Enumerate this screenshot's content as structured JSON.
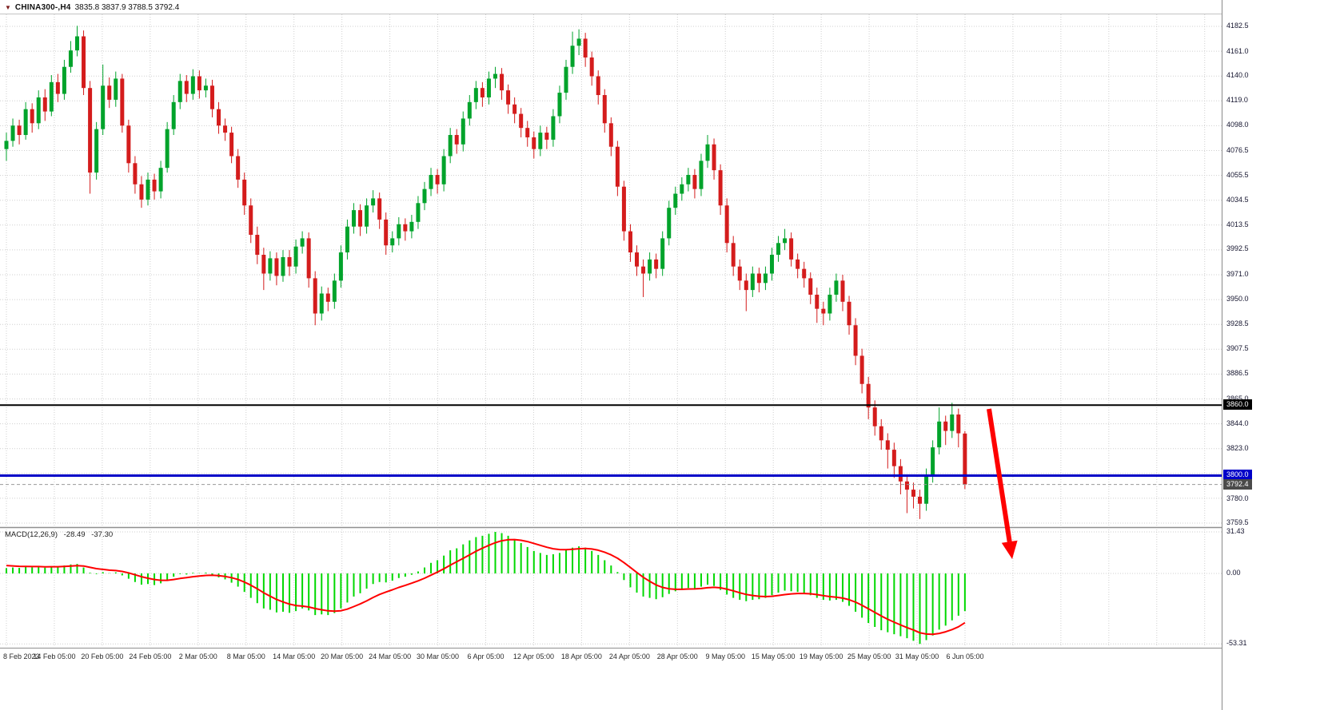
{
  "window": {
    "title_icon": "▼",
    "symbol": "CHINA300-,H4",
    "ohlc_text": "3835.8 3837.9 3788.5 3792.4"
  },
  "price_axis": {
    "badges": [
      {
        "label": "3860.0",
        "value": 3860.0,
        "bg": "#000000",
        "fg": "#ffffff"
      },
      {
        "label": "3800.0",
        "value": 3800.0,
        "bg": "#0000c8",
        "fg": "#ffffff"
      },
      {
        "label": "3792.4",
        "value": 3792.4,
        "bg": "#4a4a4a",
        "fg": "#ffffff"
      }
    ]
  },
  "macd_panel": {
    "name": "MACD(12,26,9)",
    "main_value": "-28.49",
    "signal_value": "-37.30",
    "scale": {
      "max": "31.43",
      "zero": "0.00",
      "min": "-53.31"
    }
  },
  "colors": {
    "candle_up": "#00a32b",
    "candle_down": "#d41c1c",
    "macd_bar": "#00d800",
    "signal_line": "#ff0000",
    "grid": "#cfcfcf",
    "separator": "#909090",
    "black_line": "#000000",
    "blue_line": "#0000c8",
    "current_price_line": "#9a9a9a",
    "arrow": "#fe0000",
    "axis_text": "#14142e"
  },
  "chart_data": {
    "type": "candlestick",
    "symbol": "CHINA300",
    "timeframe": "H4",
    "title": "CHINA300-,H4 3835.8 3837.9 3788.5 3792.4",
    "grid": true,
    "price_axis_range": [
      3759.5,
      4182.5
    ],
    "price_tick_labels": [
      "4182.5",
      "4161.0",
      "4140.0",
      "4119.0",
      "4098.0",
      "4076.5",
      "4055.5",
      "4034.5",
      "4013.5",
      "3992.5",
      "3971.0",
      "3950.0",
      "3928.5",
      "3907.5",
      "3886.5",
      "3865.0",
      "3844.0",
      "3823.0",
      "3780.0",
      "3759.5"
    ],
    "x_tick_labels": [
      "8 Feb 2023",
      "14 Feb 05:00",
      "20 Feb 05:00",
      "24 Feb 05:00",
      "2 Mar 05:00",
      "8 Mar 05:00",
      "14 Mar 05:00",
      "20 Mar 05:00",
      "24 Mar 05:00",
      "30 Mar 05:00",
      "6 Apr 05:00",
      "12 Apr 05:00",
      "18 Apr 05:00",
      "24 Apr 05:00",
      "28 Apr 05:00",
      "9 May 05:00",
      "15 May 05:00",
      "19 May 05:00",
      "25 May 05:00",
      "31 May 05:00",
      "6 Jun 05:00"
    ],
    "hlines": [
      {
        "value": 3860.0,
        "color": "#000000",
        "width": 2
      },
      {
        "value": 3800.0,
        "color": "#0000c8",
        "width": 3
      }
    ],
    "current_price": 3792.4,
    "last_bar_ohlc": [
      3835.8,
      3837.9,
      3788.5,
      3792.4
    ],
    "annotations": [
      {
        "type": "arrow",
        "color": "#fe0000",
        "direction": "down",
        "start_price": 3858,
        "end_price": 3728,
        "note": "projected-decline-arrow"
      }
    ],
    "candles": [
      [
        4078,
        4092,
        4068,
        4085
      ],
      [
        4085,
        4104,
        4080,
        4098
      ],
      [
        4098,
        4103,
        4082,
        4090
      ],
      [
        4090,
        4118,
        4086,
        4112
      ],
      [
        4112,
        4117,
        4092,
        4100
      ],
      [
        4100,
        4128,
        4095,
        4122
      ],
      [
        4122,
        4129,
        4102,
        4110
      ],
      [
        4110,
        4141,
        4106,
        4135
      ],
      [
        4135,
        4142,
        4118,
        4125
      ],
      [
        4125,
        4154,
        4120,
        4148
      ],
      [
        4148,
        4170,
        4143,
        4162
      ],
      [
        4162,
        4183,
        4157,
        4174
      ],
      [
        4174,
        4179,
        4124,
        4130
      ],
      [
        4130,
        4136,
        4040,
        4058
      ],
      [
        4058,
        4101,
        4052,
        4095
      ],
      [
        4095,
        4150,
        4090,
        4132
      ],
      [
        4132,
        4139,
        4113,
        4120
      ],
      [
        4120,
        4144,
        4114,
        4138
      ],
      [
        4138,
        4142,
        4092,
        4098
      ],
      [
        4098,
        4103,
        4058,
        4066
      ],
      [
        4066,
        4072,
        4040,
        4048
      ],
      [
        4048,
        4055,
        4028,
        4035
      ],
      [
        4035,
        4058,
        4030,
        4052
      ],
      [
        4052,
        4057,
        4035,
        4042
      ],
      [
        4042,
        4068,
        4036,
        4062
      ],
      [
        4062,
        4101,
        4058,
        4095
      ],
      [
        4095,
        4124,
        4090,
        4118
      ],
      [
        4118,
        4142,
        4112,
        4136
      ],
      [
        4136,
        4141,
        4118,
        4125
      ],
      [
        4125,
        4146,
        4120,
        4140
      ],
      [
        4140,
        4145,
        4121,
        4128
      ],
      [
        4128,
        4138,
        4122,
        4132
      ],
      [
        4132,
        4137,
        4105,
        4112
      ],
      [
        4112,
        4118,
        4091,
        4098
      ],
      [
        4098,
        4104,
        4085,
        4092
      ],
      [
        4092,
        4097,
        4066,
        4072
      ],
      [
        4072,
        4078,
        4045,
        4052
      ],
      [
        4052,
        4058,
        4022,
        4030
      ],
      [
        4030,
        4036,
        3998,
        4005
      ],
      [
        4005,
        4012,
        3980,
        3988
      ],
      [
        3988,
        3994,
        3958,
        3972
      ],
      [
        3972,
        3991,
        3966,
        3985
      ],
      [
        3985,
        3990,
        3962,
        3970
      ],
      [
        3970,
        3992,
        3965,
        3986
      ],
      [
        3986,
        3992,
        3970,
        3978
      ],
      [
        3978,
        4001,
        3972,
        3995
      ],
      [
        3995,
        4008,
        3989,
        4002
      ],
      [
        4002,
        4007,
        3960,
        3968
      ],
      [
        3968,
        3974,
        3928,
        3938
      ],
      [
        3938,
        3961,
        3932,
        3955
      ],
      [
        3955,
        3960,
        3940,
        3948
      ],
      [
        3948,
        3972,
        3942,
        3966
      ],
      [
        3966,
        3996,
        3960,
        3990
      ],
      [
        3990,
        4018,
        3984,
        4012
      ],
      [
        4012,
        4032,
        4006,
        4026
      ],
      [
        4026,
        4031,
        4004,
        4012
      ],
      [
        4012,
        4036,
        4006,
        4030
      ],
      [
        4030,
        4043,
        4024,
        4036
      ],
      [
        4036,
        4041,
        4010,
        4018
      ],
      [
        4018,
        4024,
        3988,
        3996
      ],
      [
        3996,
        4008,
        3990,
        4002
      ],
      [
        4002,
        4020,
        3996,
        4014
      ],
      [
        4014,
        4019,
        4000,
        4008
      ],
      [
        4008,
        4022,
        4002,
        4016
      ],
      [
        4016,
        4038,
        4010,
        4032
      ],
      [
        4032,
        4050,
        4026,
        4044
      ],
      [
        4044,
        4062,
        4038,
        4056
      ],
      [
        4056,
        4061,
        4040,
        4048
      ],
      [
        4048,
        4078,
        4042,
        4072
      ],
      [
        4072,
        4096,
        4066,
        4090
      ],
      [
        4090,
        4095,
        4074,
        4082
      ],
      [
        4082,
        4110,
        4076,
        4104
      ],
      [
        4104,
        4124,
        4098,
        4118
      ],
      [
        4118,
        4136,
        4112,
        4130
      ],
      [
        4130,
        4135,
        4114,
        4122
      ],
      [
        4122,
        4144,
        4116,
        4138
      ],
      [
        4138,
        4148,
        4130,
        4142
      ],
      [
        4142,
        4147,
        4120,
        4128
      ],
      [
        4128,
        4133,
        4108,
        4116
      ],
      [
        4116,
        4122,
        4100,
        4108
      ],
      [
        4108,
        4113,
        4088,
        4096
      ],
      [
        4096,
        4102,
        4080,
        4088
      ],
      [
        4088,
        4093,
        4070,
        4078
      ],
      [
        4078,
        4098,
        4072,
        4092
      ],
      [
        4092,
        4097,
        4078,
        4086
      ],
      [
        4086,
        4112,
        4080,
        4106
      ],
      [
        4106,
        4132,
        4100,
        4126
      ],
      [
        4126,
        4154,
        4120,
        4148
      ],
      [
        4148,
        4178,
        4142,
        4166
      ],
      [
        4166,
        4180,
        4158,
        4172
      ],
      [
        4172,
        4177,
        4148,
        4156
      ],
      [
        4156,
        4161,
        4132,
        4140
      ],
      [
        4140,
        4145,
        4116,
        4124
      ],
      [
        4124,
        4129,
        4092,
        4100
      ],
      [
        4100,
        4105,
        4072,
        4080
      ],
      [
        4080,
        4085,
        4038,
        4046
      ],
      [
        4046,
        4051,
        4000,
        4008
      ],
      [
        4008,
        4014,
        3982,
        3990
      ],
      [
        3990,
        3996,
        3970,
        3978
      ],
      [
        3978,
        3984,
        3952,
        3972
      ],
      [
        3972,
        3990,
        3966,
        3984
      ],
      [
        3984,
        3989,
        3968,
        3976
      ],
      [
        3976,
        4008,
        3970,
        4002
      ],
      [
        4002,
        4034,
        3996,
        4028
      ],
      [
        4028,
        4046,
        4022,
        4040
      ],
      [
        4040,
        4054,
        4034,
        4048
      ],
      [
        4048,
        4062,
        4042,
        4056
      ],
      [
        4056,
        4061,
        4036,
        4044
      ],
      [
        4044,
        4074,
        4038,
        4068
      ],
      [
        4068,
        4090,
        4062,
        4082
      ],
      [
        4082,
        4087,
        4052,
        4060
      ],
      [
        4060,
        4065,
        4022,
        4030
      ],
      [
        4030,
        4036,
        3990,
        3998
      ],
      [
        3998,
        4004,
        3970,
        3978
      ],
      [
        3978,
        3984,
        3958,
        3966
      ],
      [
        3966,
        3972,
        3940,
        3958
      ],
      [
        3958,
        3978,
        3952,
        3972
      ],
      [
        3972,
        3977,
        3956,
        3964
      ],
      [
        3964,
        3978,
        3958,
        3972
      ],
      [
        3972,
        3994,
        3966,
        3988
      ],
      [
        3988,
        4004,
        3982,
        3998
      ],
      [
        3998,
        4010,
        3992,
        4002
      ],
      [
        4002,
        4007,
        3978,
        3984
      ],
      [
        3984,
        3989,
        3968,
        3976
      ],
      [
        3976,
        3982,
        3960,
        3968
      ],
      [
        3968,
        3973,
        3946,
        3954
      ],
      [
        3954,
        3960,
        3930,
        3942
      ],
      [
        3942,
        3948,
        3928,
        3938
      ],
      [
        3938,
        3960,
        3932,
        3954
      ],
      [
        3954,
        3972,
        3948,
        3966
      ],
      [
        3966,
        3971,
        3940,
        3948
      ],
      [
        3948,
        3953,
        3920,
        3928
      ],
      [
        3928,
        3934,
        3894,
        3902
      ],
      [
        3902,
        3908,
        3870,
        3878
      ],
      [
        3878,
        3884,
        3848,
        3858
      ],
      [
        3858,
        3864,
        3834,
        3842
      ],
      [
        3842,
        3848,
        3822,
        3830
      ],
      [
        3830,
        3836,
        3806,
        3822
      ],
      [
        3822,
        3828,
        3798,
        3808
      ],
      [
        3808,
        3814,
        3784,
        3795
      ],
      [
        3795,
        3801,
        3768,
        3788
      ],
      [
        3788,
        3794,
        3772,
        3782
      ],
      [
        3782,
        3788,
        3763,
        3776
      ],
      [
        3776,
        3806,
        3770,
        3800
      ],
      [
        3800,
        3830,
        3794,
        3824
      ],
      [
        3824,
        3858,
        3818,
        3846
      ],
      [
        3846,
        3851,
        3826,
        3838
      ],
      [
        3838,
        3862,
        3832,
        3852
      ],
      [
        3852,
        3857,
        3824,
        3836
      ],
      [
        3835.8,
        3837.9,
        3788.5,
        3792.4
      ]
    ],
    "indicator": {
      "type": "MACD",
      "params": [
        12,
        26,
        9
      ],
      "range": [
        -53.31,
        31.43
      ],
      "histogram": [
        4.0,
        4.5,
        4.2,
        5.0,
        4.6,
        5.1,
        4.4,
        5.3,
        5.0,
        6.0,
        6.8,
        7.2,
        4.5,
        0.5,
        -0.5,
        1.0,
        0.2,
        0.8,
        -1.5,
        -4.0,
        -6.5,
        -8.5,
        -8.0,
        -8.8,
        -7.5,
        -5.0,
        -2.5,
        -0.5,
        -0.8,
        0.5,
        0.2,
        0.6,
        -1.0,
        -3.0,
        -4.5,
        -7.0,
        -10.0,
        -14.0,
        -18.5,
        -22.5,
        -26.5,
        -27.5,
        -29.5,
        -29.0,
        -29.8,
        -28.5,
        -26.5,
        -28.0,
        -31.5,
        -31.0,
        -31.5,
        -30.0,
        -26.5,
        -22.0,
        -17.5,
        -15.0,
        -11.5,
        -8.0,
        -6.5,
        -6.8,
        -5.5,
        -3.5,
        -2.5,
        -1.0,
        1.5,
        4.5,
        8.0,
        10.0,
        13.5,
        17.5,
        19.0,
        22.0,
        25.0,
        27.5,
        28.5,
        30.0,
        31.43,
        30.5,
        28.5,
        26.0,
        23.0,
        20.0,
        17.0,
        15.5,
        14.0,
        14.5,
        15.5,
        17.5,
        19.5,
        20.5,
        19.5,
        17.0,
        14.0,
        10.0,
        6.0,
        1.0,
        -5.0,
        -10.5,
        -14.5,
        -17.5,
        -18.5,
        -19.5,
        -18.0,
        -15.5,
        -13.5,
        -12.0,
        -11.0,
        -11.5,
        -10.0,
        -8.5,
        -9.5,
        -12.5,
        -16.0,
        -18.5,
        -20.0,
        -21.0,
        -20.0,
        -19.5,
        -18.5,
        -16.5,
        -14.5,
        -13.0,
        -13.5,
        -14.0,
        -15.0,
        -16.5,
        -18.5,
        -20.0,
        -20.5,
        -20.0,
        -21.5,
        -24.5,
        -29.0,
        -33.5,
        -37.5,
        -40.5,
        -43.0,
        -44.5,
        -46.0,
        -47.5,
        -49.0,
        -51.0,
        -53.31,
        -50.5,
        -47.0,
        -42.5,
        -39.5,
        -35.5,
        -32.0,
        -28.49
      ],
      "signal": [
        6.0,
        5.7,
        5.4,
        5.3,
        5.2,
        5.2,
        5.0,
        5.1,
        5.1,
        5.3,
        5.6,
        5.9,
        5.6,
        4.6,
        3.6,
        3.1,
        2.5,
        2.2,
        1.5,
        0.4,
        -1.0,
        -2.5,
        -3.6,
        -4.6,
        -5.2,
        -5.2,
        -4.6,
        -3.8,
        -3.2,
        -2.5,
        -2.0,
        -1.5,
        -1.4,
        -1.7,
        -2.3,
        -3.2,
        -4.6,
        -6.5,
        -8.9,
        -11.6,
        -14.6,
        -17.2,
        -19.7,
        -21.6,
        -23.2,
        -24.3,
        -24.7,
        -25.4,
        -26.6,
        -27.5,
        -28.3,
        -28.6,
        -28.2,
        -27.0,
        -25.1,
        -23.1,
        -20.8,
        -18.2,
        -15.9,
        -14.1,
        -12.4,
        -10.6,
        -9.0,
        -7.4,
        -5.6,
        -3.6,
        -1.3,
        1.0,
        3.5,
        6.3,
        8.8,
        11.4,
        14.1,
        16.8,
        19.1,
        21.3,
        23.3,
        24.7,
        25.5,
        25.6,
        25.1,
        24.1,
        22.7,
        21.3,
        19.8,
        18.7,
        18.1,
        18.0,
        18.3,
        18.7,
        18.9,
        18.5,
        17.6,
        16.1,
        14.1,
        11.5,
        8.2,
        4.5,
        0.7,
        -2.9,
        -6.0,
        -8.7,
        -10.6,
        -11.6,
        -12.0,
        -12.0,
        -11.8,
        -11.7,
        -11.4,
        -10.8,
        -10.5,
        -10.9,
        -11.9,
        -13.2,
        -14.6,
        -15.9,
        -16.7,
        -17.3,
        -17.5,
        -17.3,
        -16.7,
        -16.0,
        -15.5,
        -15.2,
        -15.2,
        -15.4,
        -16.0,
        -16.8,
        -17.5,
        -18.0,
        -18.7,
        -19.9,
        -21.7,
        -24.1,
        -26.8,
        -29.5,
        -32.2,
        -34.7,
        -36.9,
        -39.0,
        -41.0,
        -42.8,
        -44.9,
        -45.9,
        -46.1,
        -45.4,
        -44.2,
        -42.5,
        -40.4,
        -37.3
      ]
    }
  }
}
